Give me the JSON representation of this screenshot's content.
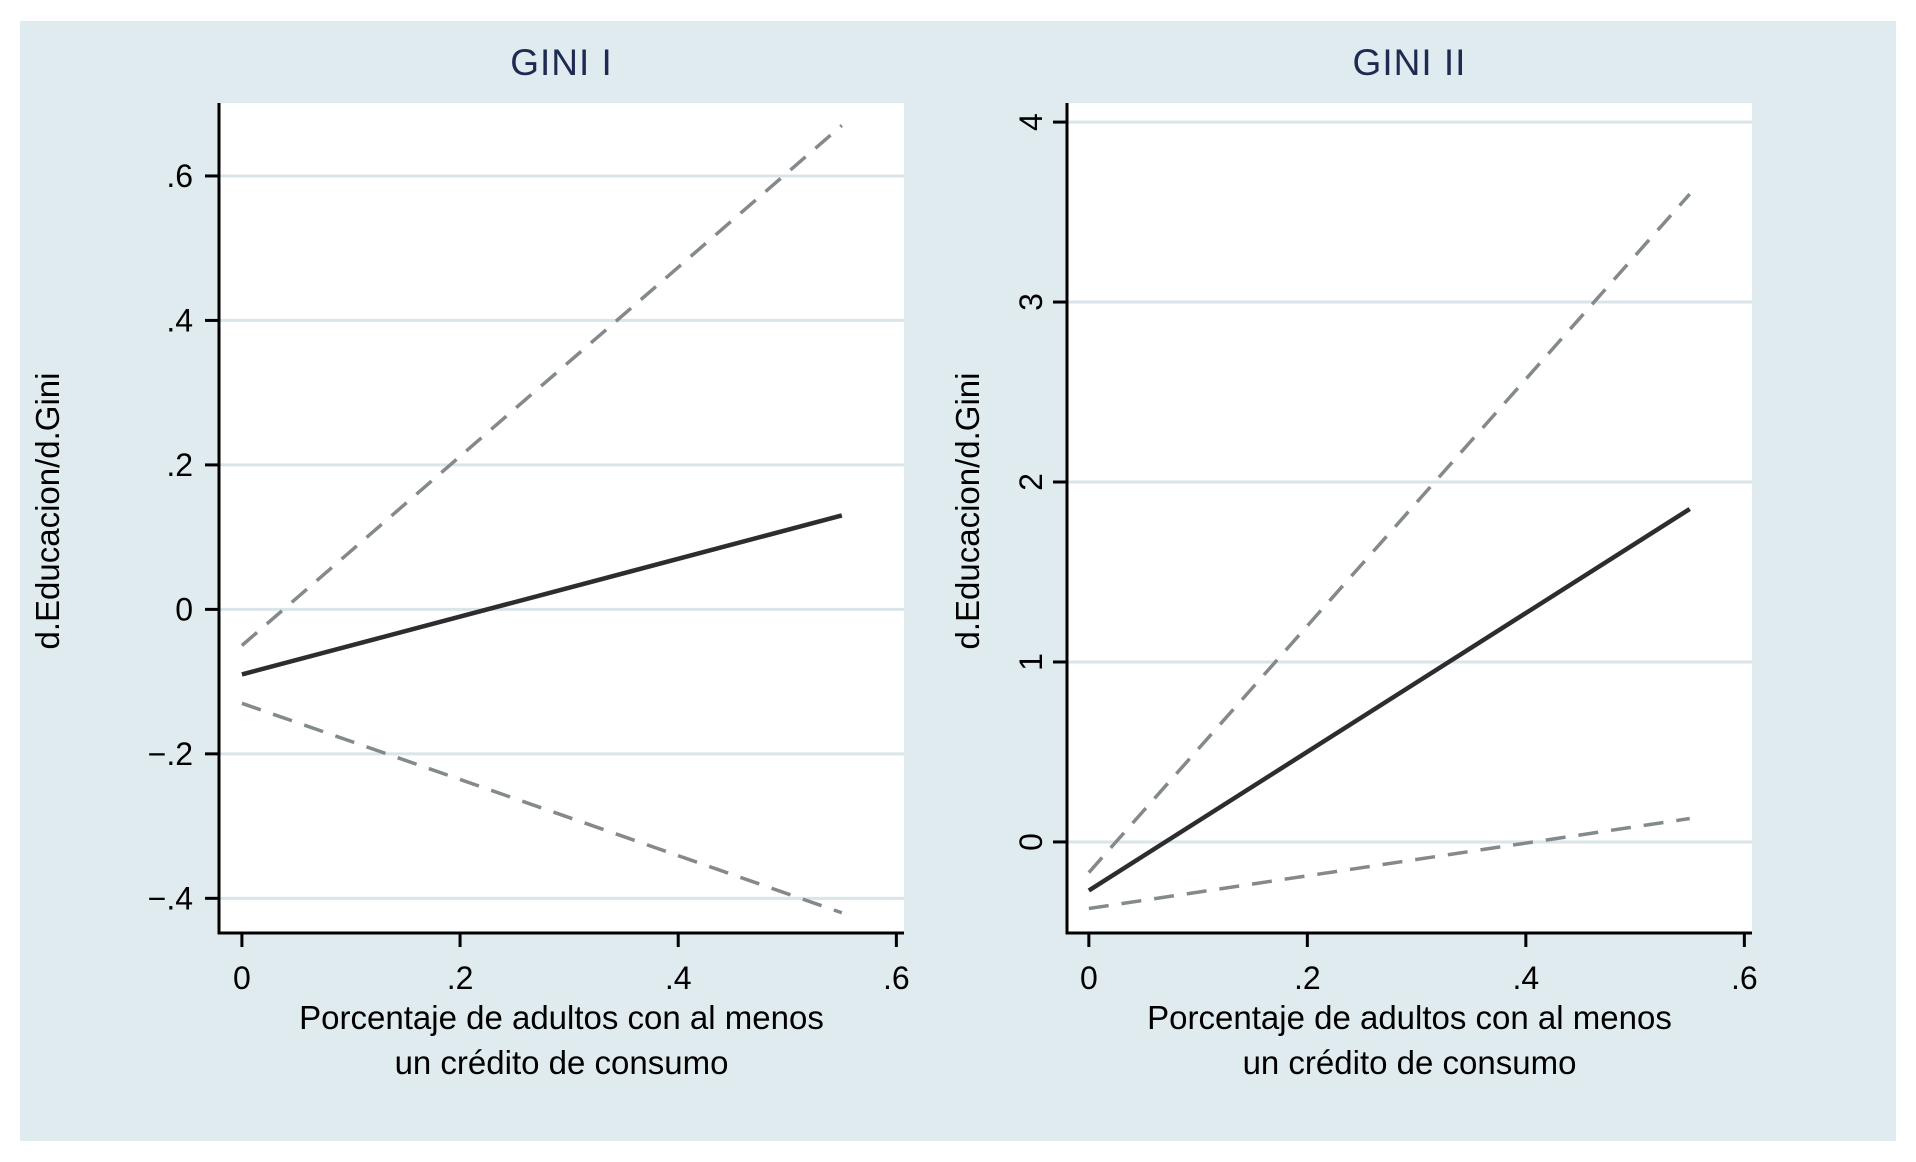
{
  "figure": {
    "page_background": "#ffffff",
    "canvas_background": "#dfebee"
  },
  "style": {
    "grid_color": "#d9e5e8",
    "axis_color": "#000000",
    "title_color": "#1e2a52",
    "solid_color": "#2d2d30",
    "dashed_color": "#84898b",
    "plot_background": "#ffffff"
  },
  "chart_data": [
    {
      "type": "line",
      "title": "GINI I",
      "ylabel": "d.Educacion/d.Gini",
      "xlabel": "Porcentaje de adultos con al menos un crédito de consumo",
      "xlabel_lines": [
        "Porcentaje de adultos con al menos",
        "un crédito de consumo"
      ],
      "xlim": [
        -0.021,
        0.607
      ],
      "ylim": [
        -0.448,
        0.701
      ],
      "xtick_values": [
        0,
        0.2,
        0.4,
        0.6
      ],
      "xtick_labels": [
        "0",
        ".2",
        ".4",
        ".6"
      ],
      "ytick_values": [
        0.6,
        0.4,
        0.2,
        0,
        -0.2,
        -0.4
      ],
      "ytick_labels": [
        ".6",
        ".4",
        ".2",
        "0",
        "−.2",
        "−.4"
      ],
      "ytick_rotated": false,
      "grid": true,
      "legend": "none",
      "series": [
        {
          "name": "upper-ci",
          "style": "dashed",
          "x": [
            0,
            0.55
          ],
          "y": [
            -0.05,
            0.67
          ]
        },
        {
          "name": "estimate",
          "style": "solid",
          "x": [
            0,
            0.55
          ],
          "y": [
            -0.09,
            0.13
          ]
        },
        {
          "name": "lower-ci",
          "style": "dashed",
          "x": [
            0,
            0.55
          ],
          "y": [
            -0.13,
            -0.42
          ]
        }
      ]
    },
    {
      "type": "line",
      "title": "GINI II",
      "ylabel": "d.Educacion/d.Gini",
      "xlabel": "Porcentaje de adultos con al menos un crédito de consumo",
      "xlabel_lines": [
        "Porcentaje de adultos con al menos",
        "un crédito de consumo"
      ],
      "xlim": [
        -0.02,
        0.607
      ],
      "ylim": [
        -0.506,
        4.106
      ],
      "xtick_values": [
        0,
        0.2,
        0.4,
        0.6
      ],
      "xtick_labels": [
        "0",
        ".2",
        ".4",
        ".6"
      ],
      "ytick_values": [
        4,
        3,
        2,
        1,
        0
      ],
      "ytick_labels": [
        "4",
        "3",
        "2",
        "1",
        "0"
      ],
      "ytick_rotated": true,
      "grid": true,
      "legend": "none",
      "series": [
        {
          "name": "upper-ci",
          "style": "dashed",
          "x": [
            0,
            0.55
          ],
          "y": [
            -0.17,
            3.6
          ]
        },
        {
          "name": "estimate",
          "style": "solid",
          "x": [
            0,
            0.55
          ],
          "y": [
            -0.27,
            1.85
          ]
        },
        {
          "name": "lower-ci",
          "style": "dashed",
          "x": [
            0,
            0.55
          ],
          "y": [
            -0.37,
            0.13
          ]
        }
      ]
    }
  ]
}
